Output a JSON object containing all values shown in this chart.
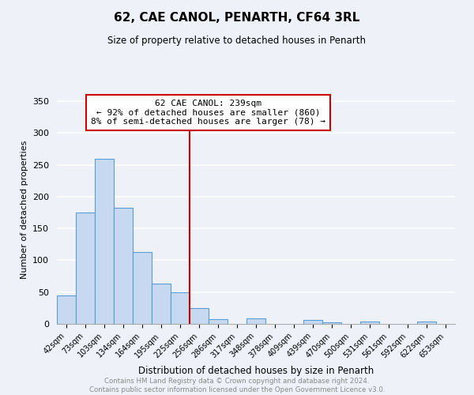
{
  "title": "62, CAE CANOL, PENARTH, CF64 3RL",
  "subtitle": "Size of property relative to detached houses in Penarth",
  "xlabel": "Distribution of detached houses by size in Penarth",
  "ylabel": "Number of detached properties",
  "bin_labels": [
    "42sqm",
    "73sqm",
    "103sqm",
    "134sqm",
    "164sqm",
    "195sqm",
    "225sqm",
    "256sqm",
    "286sqm",
    "317sqm",
    "348sqm",
    "378sqm",
    "409sqm",
    "439sqm",
    "470sqm",
    "500sqm",
    "531sqm",
    "561sqm",
    "592sqm",
    "622sqm",
    "653sqm"
  ],
  "bar_heights": [
    45,
    175,
    260,
    183,
    113,
    63,
    50,
    25,
    8,
    0,
    9,
    0,
    0,
    6,
    3,
    0,
    4,
    0,
    0,
    4,
    0
  ],
  "bar_color": "#c6d9f0",
  "bar_edge_color": "#5b9bd5",
  "vline_x": 6.5,
  "vline_color": "#cc0000",
  "annotation_text": "62 CAE CANOL: 239sqm\n← 92% of detached houses are smaller (860)\n8% of semi-detached houses are larger (78) →",
  "annotation_box_color": "white",
  "annotation_box_edge_color": "#cc0000",
  "ylim": [
    0,
    360
  ],
  "yticks": [
    0,
    50,
    100,
    150,
    200,
    250,
    300,
    350
  ],
  "footer_text": "Contains HM Land Registry data © Crown copyright and database right 2024.\nContains public sector information licensed under the Open Government Licence v3.0.",
  "footer_color": "#888888",
  "background_color": "#eef2f8"
}
